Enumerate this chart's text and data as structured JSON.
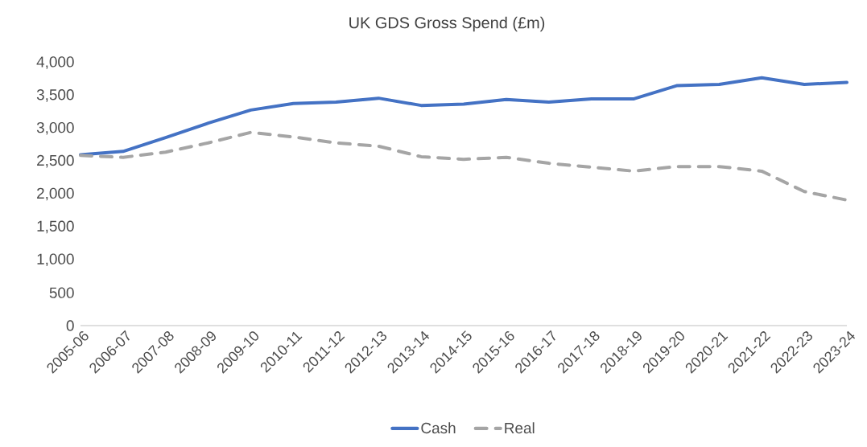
{
  "chart_data": {
    "type": "line",
    "title": "UK GDS Gross Spend (£m)",
    "categories": [
      "2005-06",
      "2006-07",
      "2007-08",
      "2008-09",
      "2009-10",
      "2010-11",
      "2011-12",
      "2012-13",
      "2013-14",
      "2014-15",
      "2015-16",
      "2016-17",
      "2017-18",
      "2018-19",
      "2019-20",
      "2020-21",
      "2021-22",
      "2022-23",
      "2023-24"
    ],
    "series": [
      {
        "name": "Cash",
        "color": "#4472c4",
        "line_style": "solid",
        "values": [
          2600,
          2650,
          2860,
          3080,
          3280,
          3380,
          3400,
          3460,
          3350,
          3370,
          3440,
          3400,
          3450,
          3450,
          3650,
          3670,
          3770,
          3670,
          3700
        ]
      },
      {
        "name": "Real",
        "color": "#a5a5a5",
        "line_style": "dashed",
        "values": [
          2590,
          2560,
          2640,
          2780,
          2940,
          2870,
          2780,
          2730,
          2570,
          2530,
          2560,
          2470,
          2410,
          2350,
          2420,
          2420,
          2350,
          2040,
          1910
        ]
      }
    ],
    "ylim": [
      0,
      4000
    ],
    "yticks": [
      {
        "value": 0,
        "label": "0"
      },
      {
        "value": 500,
        "label": "500"
      },
      {
        "value": 1000,
        "label": "1,000"
      },
      {
        "value": 1500,
        "label": "1,500"
      },
      {
        "value": 2000,
        "label": "2,000"
      },
      {
        "value": 2500,
        "label": "2,500"
      },
      {
        "value": 3000,
        "label": "3,000"
      },
      {
        "value": 3500,
        "label": "3,500"
      },
      {
        "value": 4000,
        "label": "4,000"
      }
    ],
    "grid": false,
    "legend": "bottom",
    "marker": "none"
  }
}
